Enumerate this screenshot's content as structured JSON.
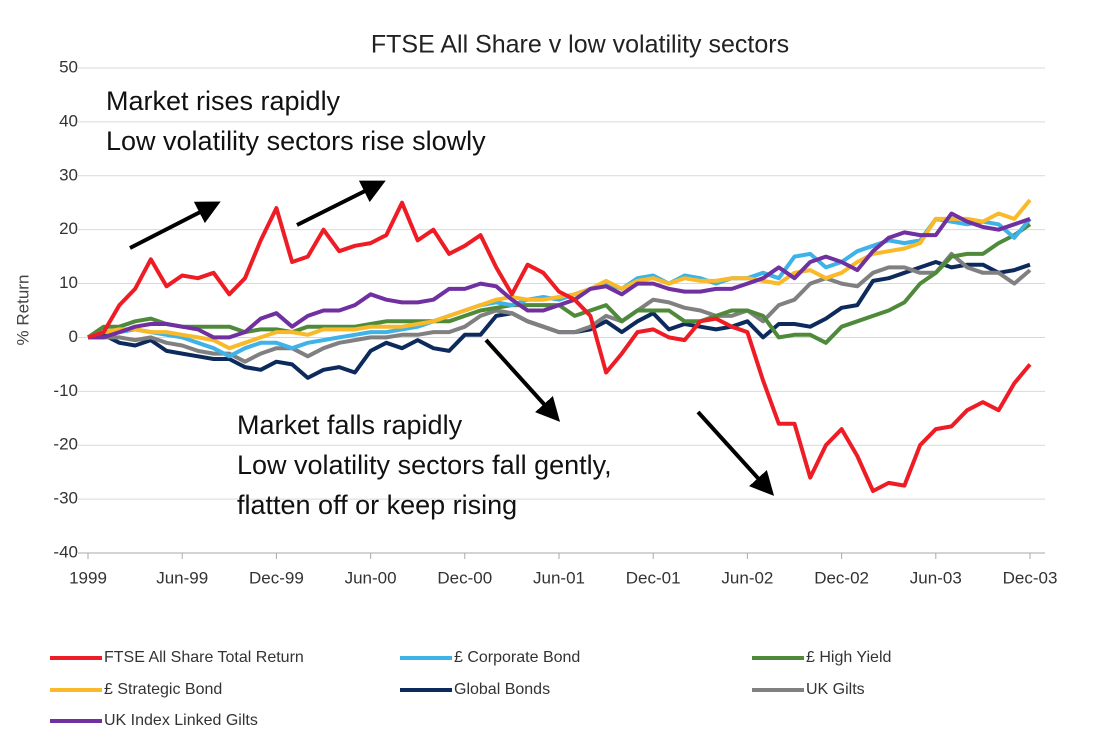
{
  "chart_data": {
    "type": "line",
    "title": "FTSE All Share v low volatility sectors",
    "y_label": "% Return",
    "annotations": [
      "Market rises rapidly",
      "Low volatility sectors rise slowly",
      "Market falls rapidly",
      "Low volatility sectors fall gently,",
      "flatten off or keep rising"
    ],
    "categories": [
      "1999",
      null,
      null,
      null,
      null,
      null,
      "Jun-99",
      null,
      null,
      null,
      null,
      null,
      "Dec-99",
      null,
      null,
      null,
      null,
      null,
      "Jun-00",
      null,
      null,
      null,
      null,
      null,
      "Dec-00",
      null,
      null,
      null,
      null,
      null,
      "Jun-01",
      null,
      null,
      null,
      null,
      null,
      "Dec-01",
      null,
      null,
      null,
      null,
      null,
      "Jun-02",
      null,
      null,
      null,
      null,
      null,
      "Dec-02",
      null,
      null,
      null,
      null,
      null,
      "Jun-03",
      null,
      null,
      null,
      null,
      null,
      "Dec-03"
    ],
    "ylim": [
      -40,
      50
    ],
    "yticks": [
      -40,
      -30,
      -20,
      -10,
      0,
      10,
      20,
      30,
      40,
      50
    ],
    "grid": true,
    "legend_position": "bottom",
    "series": [
      {
        "name": "FTSE All Share Total Return",
        "color": "#ee1c25",
        "values": [
          0,
          1,
          6,
          9,
          14.5,
          9.5,
          11.5,
          11,
          12,
          8,
          11,
          18,
          24,
          14,
          15,
          20,
          16,
          17,
          17.5,
          19,
          25,
          18,
          20,
          15.5,
          17,
          19,
          13,
          8,
          13.5,
          12,
          8.5,
          7,
          4,
          -6.5,
          -3,
          1,
          1.5,
          0,
          -0.5,
          3,
          3.5,
          2,
          1,
          -8,
          -16,
          -16,
          -26,
          -20,
          -17,
          -22,
          -28.5,
          -27,
          -27.5,
          -20,
          -17,
          -16.5,
          -13.5,
          -12,
          -13.5,
          -8.5,
          -5
        ]
      },
      {
        "name": "£ Corporate Bond",
        "color": "#3fb3e8",
        "values": [
          0,
          1,
          1,
          1.5,
          1,
          0.5,
          0,
          -1,
          -2,
          -3.5,
          -2,
          -1,
          -1,
          -2,
          -1,
          -0.5,
          0,
          0.5,
          1,
          1,
          1.5,
          2,
          3,
          4,
          5,
          6,
          6.5,
          6,
          7,
          7.5,
          7,
          8,
          9,
          10,
          9,
          11,
          11.5,
          10,
          11.5,
          11,
          10,
          11,
          11,
          12,
          11,
          15,
          15.5,
          13,
          14,
          16,
          17,
          18,
          17.5,
          18,
          22,
          21.5,
          21,
          21.5,
          21,
          18.5,
          22
        ]
      },
      {
        "name": "£ High Yield",
        "color": "#4e8a3a",
        "values": [
          0,
          2,
          2,
          3,
          3.5,
          2.5,
          2,
          2,
          2,
          2,
          1,
          1.5,
          1.5,
          1,
          2,
          2,
          2,
          2,
          2.5,
          3,
          3,
          3,
          3,
          3,
          4,
          5,
          5.5,
          6,
          6,
          6,
          6,
          4,
          5,
          6,
          3,
          5,
          5,
          5,
          3,
          3,
          4,
          5,
          5,
          4,
          0,
          0.5,
          0.5,
          -1,
          2,
          3,
          4,
          5,
          6.5,
          10,
          12,
          15,
          15.5,
          15.5,
          17.5,
          19,
          21
        ]
      },
      {
        "name": "£ Strategic Bond",
        "color": "#f9b928",
        "values": [
          0,
          1,
          1.5,
          1.5,
          1,
          1,
          0.5,
          0,
          -0.5,
          -2,
          -1,
          0,
          1,
          1,
          0.5,
          1.5,
          1.5,
          1.5,
          2,
          2,
          2,
          2.5,
          3,
          4,
          5,
          6,
          7,
          7.5,
          7,
          7,
          7.5,
          8,
          9,
          10.5,
          9,
          10.5,
          11,
          10,
          11,
          10.5,
          10.5,
          11,
          11,
          10.5,
          10,
          12,
          12.5,
          11,
          12,
          14,
          15.5,
          16,
          16.5,
          17.5,
          22,
          22,
          22,
          21.5,
          23,
          22,
          25.5
        ]
      },
      {
        "name": "Global Bonds",
        "color": "#0d2a5c",
        "values": [
          0,
          0.5,
          -1,
          -1.5,
          -0.5,
          -2.5,
          -3,
          -3.5,
          -4,
          -4,
          -5.5,
          -6,
          -4.5,
          -5,
          -7.5,
          -6,
          -5.5,
          -6.5,
          -2.5,
          -1,
          -2,
          -0.5,
          -2,
          -2.5,
          0.5,
          0.5,
          4,
          4.5,
          3,
          2,
          1,
          1,
          1.5,
          3,
          1,
          3,
          4.5,
          1.5,
          2.5,
          2,
          1.5,
          2,
          3,
          0,
          2.5,
          2.5,
          2,
          3.5,
          5.5,
          6,
          10.5,
          11,
          12,
          13,
          14,
          13,
          13.5,
          13.5,
          12,
          12.5,
          13.5
        ]
      },
      {
        "name": "UK Gilts",
        "color": "#808080",
        "values": [
          0,
          0,
          0,
          -0.5,
          0,
          -1,
          -1.5,
          -2.5,
          -3,
          -3,
          -4.5,
          -3,
          -2,
          -2,
          -3.5,
          -2,
          -1,
          -0.5,
          0,
          0,
          0.5,
          0.5,
          1,
          1,
          2,
          4,
          5,
          4.5,
          3,
          2,
          1,
          1,
          2,
          4,
          3,
          5,
          7,
          6.5,
          5.5,
          5,
          4,
          4,
          5,
          3,
          6,
          7,
          10,
          11,
          10,
          9.5,
          12,
          13,
          13,
          12,
          12,
          15.5,
          13,
          12,
          12,
          10,
          12.5
        ]
      },
      {
        "name": "UK Index Linked Gilts",
        "color": "#7030a0",
        "values": [
          0,
          0,
          1,
          2,
          2.5,
          2.5,
          2,
          1.5,
          0,
          0,
          1,
          3.5,
          4.5,
          2,
          4,
          5,
          5,
          6,
          8,
          7,
          6.5,
          6.5,
          7,
          9,
          9,
          10,
          9.5,
          7,
          5,
          5,
          6,
          7,
          9,
          9.5,
          8,
          10,
          10,
          9,
          8.5,
          8.5,
          9,
          9,
          10,
          11,
          13,
          11,
          14,
          15,
          14,
          12.5,
          16,
          18.5,
          19.5,
          19,
          19,
          23,
          21.5,
          20.5,
          20,
          21,
          22
        ]
      }
    ]
  }
}
